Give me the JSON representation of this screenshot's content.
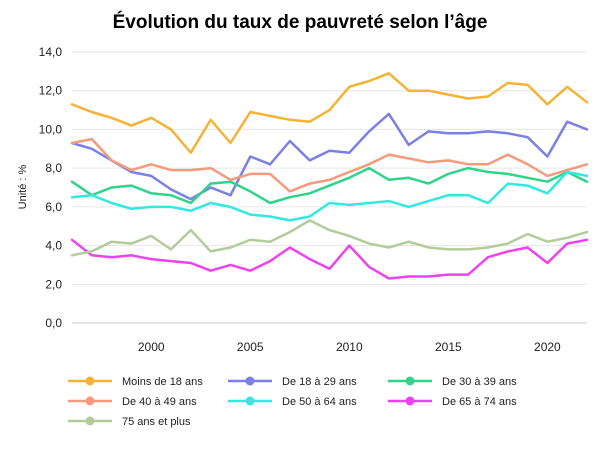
{
  "chart_data": {
    "type": "line",
    "title": "Évolution du taux de pauvreté selon l’âge",
    "ylabel": "Unité : %",
    "xlabel": "",
    "ylim": [
      0,
      14
    ],
    "xlim": [
      1996,
      2022
    ],
    "yticks": [
      "0,0",
      "2,0",
      "4,0",
      "6,0",
      "8,0",
      "10,0",
      "12,0",
      "14,0"
    ],
    "xticks": [
      "2000",
      "2005",
      "2010",
      "2015",
      "2020"
    ],
    "grid": true,
    "legend_position": "bottom",
    "x": [
      1996,
      1997,
      1998,
      1999,
      2000,
      2001,
      2002,
      2003,
      2004,
      2005,
      2006,
      2007,
      2008,
      2009,
      2010,
      2011,
      2012,
      2013,
      2014,
      2015,
      2016,
      2017,
      2018,
      2019,
      2020,
      2021,
      2022
    ],
    "series": [
      {
        "name": "Moins de 18 ans",
        "color": "#f5b335",
        "values": [
          11.3,
          10.9,
          10.6,
          10.2,
          10.6,
          10.0,
          8.8,
          10.5,
          9.3,
          10.9,
          10.7,
          10.5,
          10.4,
          11.0,
          12.2,
          12.5,
          12.9,
          12.0,
          12.0,
          11.8,
          11.6,
          11.7,
          12.4,
          12.3,
          11.3,
          12.2,
          11.4
        ]
      },
      {
        "name": "De 18 à 29 ans",
        "color": "#7b7fe8",
        "values": [
          9.3,
          9.0,
          8.4,
          7.8,
          7.6,
          6.9,
          6.4,
          7.0,
          6.6,
          8.6,
          8.2,
          9.4,
          8.4,
          8.9,
          8.8,
          9.9,
          10.8,
          9.2,
          9.9,
          9.8,
          9.8,
          9.9,
          9.8,
          9.6,
          8.6,
          10.4,
          10.0
        ]
      },
      {
        "name": "De 30 à 39 ans",
        "color": "#2fd48a",
        "values": [
          7.3,
          6.6,
          7.0,
          7.1,
          6.7,
          6.6,
          6.2,
          7.2,
          7.3,
          6.8,
          6.2,
          6.5,
          6.7,
          7.1,
          7.5,
          8.0,
          7.4,
          7.5,
          7.2,
          7.7,
          8.0,
          7.8,
          7.7,
          7.5,
          7.3,
          7.8,
          7.3
        ]
      },
      {
        "name": "De 40 à 49 ans",
        "color": "#f59a7c",
        "values": [
          9.3,
          9.5,
          8.4,
          7.9,
          8.2,
          7.9,
          7.9,
          8.0,
          7.4,
          7.7,
          7.7,
          6.8,
          7.2,
          7.4,
          7.8,
          8.2,
          8.7,
          8.5,
          8.3,
          8.4,
          8.2,
          8.2,
          8.7,
          8.2,
          7.6,
          7.9,
          8.2
        ]
      },
      {
        "name": "De 50 à 64 ans",
        "color": "#33e8e0",
        "values": [
          6.5,
          6.6,
          6.2,
          5.9,
          6.0,
          6.0,
          5.8,
          6.2,
          6.0,
          5.6,
          5.5,
          5.3,
          5.5,
          6.2,
          6.1,
          6.2,
          6.3,
          6.0,
          6.3,
          6.6,
          6.6,
          6.2,
          7.2,
          7.1,
          6.7,
          7.8,
          7.6
        ]
      },
      {
        "name": "De 65 à 74 ans",
        "color": "#ee42ee",
        "values": [
          4.3,
          3.5,
          3.4,
          3.5,
          3.3,
          3.2,
          3.1,
          2.7,
          3.0,
          2.7,
          3.2,
          3.9,
          3.3,
          2.8,
          4.0,
          2.9,
          2.3,
          2.4,
          2.4,
          2.5,
          2.5,
          3.4,
          3.7,
          3.9,
          3.1,
          4.1,
          4.3
        ]
      },
      {
        "name": "75 ans et plus",
        "color": "#b3cc9a",
        "values": [
          3.5,
          3.7,
          4.2,
          4.1,
          4.5,
          3.8,
          4.8,
          3.7,
          3.9,
          4.3,
          4.2,
          4.7,
          5.3,
          4.8,
          4.5,
          4.1,
          3.9,
          4.2,
          3.9,
          3.8,
          3.8,
          3.9,
          4.1,
          4.6,
          4.2,
          4.4,
          4.7
        ]
      }
    ]
  }
}
